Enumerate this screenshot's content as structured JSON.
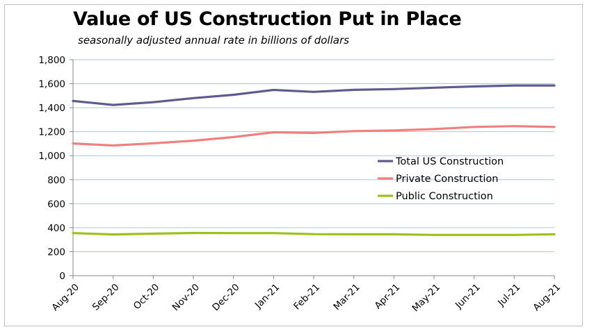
{
  "chart_data": {
    "type": "line",
    "title": "Value of US Construction Put in Place",
    "subtitle": "seasonally adjusted annual rate in billions of dollars",
    "xlabel": "",
    "ylabel": "",
    "categories": [
      "Aug-20",
      "Sep-20",
      "Oct-20",
      "Nov-20",
      "Dec-20",
      "Jan-21",
      "Feb-21",
      "Mar-21",
      "Apr-21",
      "May-21",
      "Jun-21",
      "Jul-21",
      "Aug-21"
    ],
    "ylim": [
      0,
      1800
    ],
    "yticks": [
      0,
      200,
      400,
      600,
      800,
      1000,
      1200,
      1400,
      1600,
      1800
    ],
    "ytick_labels": [
      "0",
      "200",
      "400",
      "600",
      "800",
      "1,000",
      "1,200",
      "1,400",
      "1,600",
      "1,800"
    ],
    "grid": true,
    "legend_position": "right-middle",
    "series": [
      {
        "name": "Total US Construction",
        "color": "#5f5a8f",
        "values": [
          1456,
          1423,
          1446,
          1480,
          1508,
          1548,
          1532,
          1549,
          1555,
          1567,
          1577,
          1585,
          1585
        ]
      },
      {
        "name": "Private Construction",
        "color": "#f08080",
        "values": [
          1102,
          1085,
          1103,
          1125,
          1155,
          1195,
          1190,
          1205,
          1211,
          1222,
          1240,
          1246,
          1240
        ]
      },
      {
        "name": "Public Construction",
        "color": "#9bc21c",
        "values": [
          355,
          344,
          350,
          356,
          355,
          355,
          346,
          345,
          345,
          340,
          340,
          340,
          345
        ]
      }
    ]
  }
}
